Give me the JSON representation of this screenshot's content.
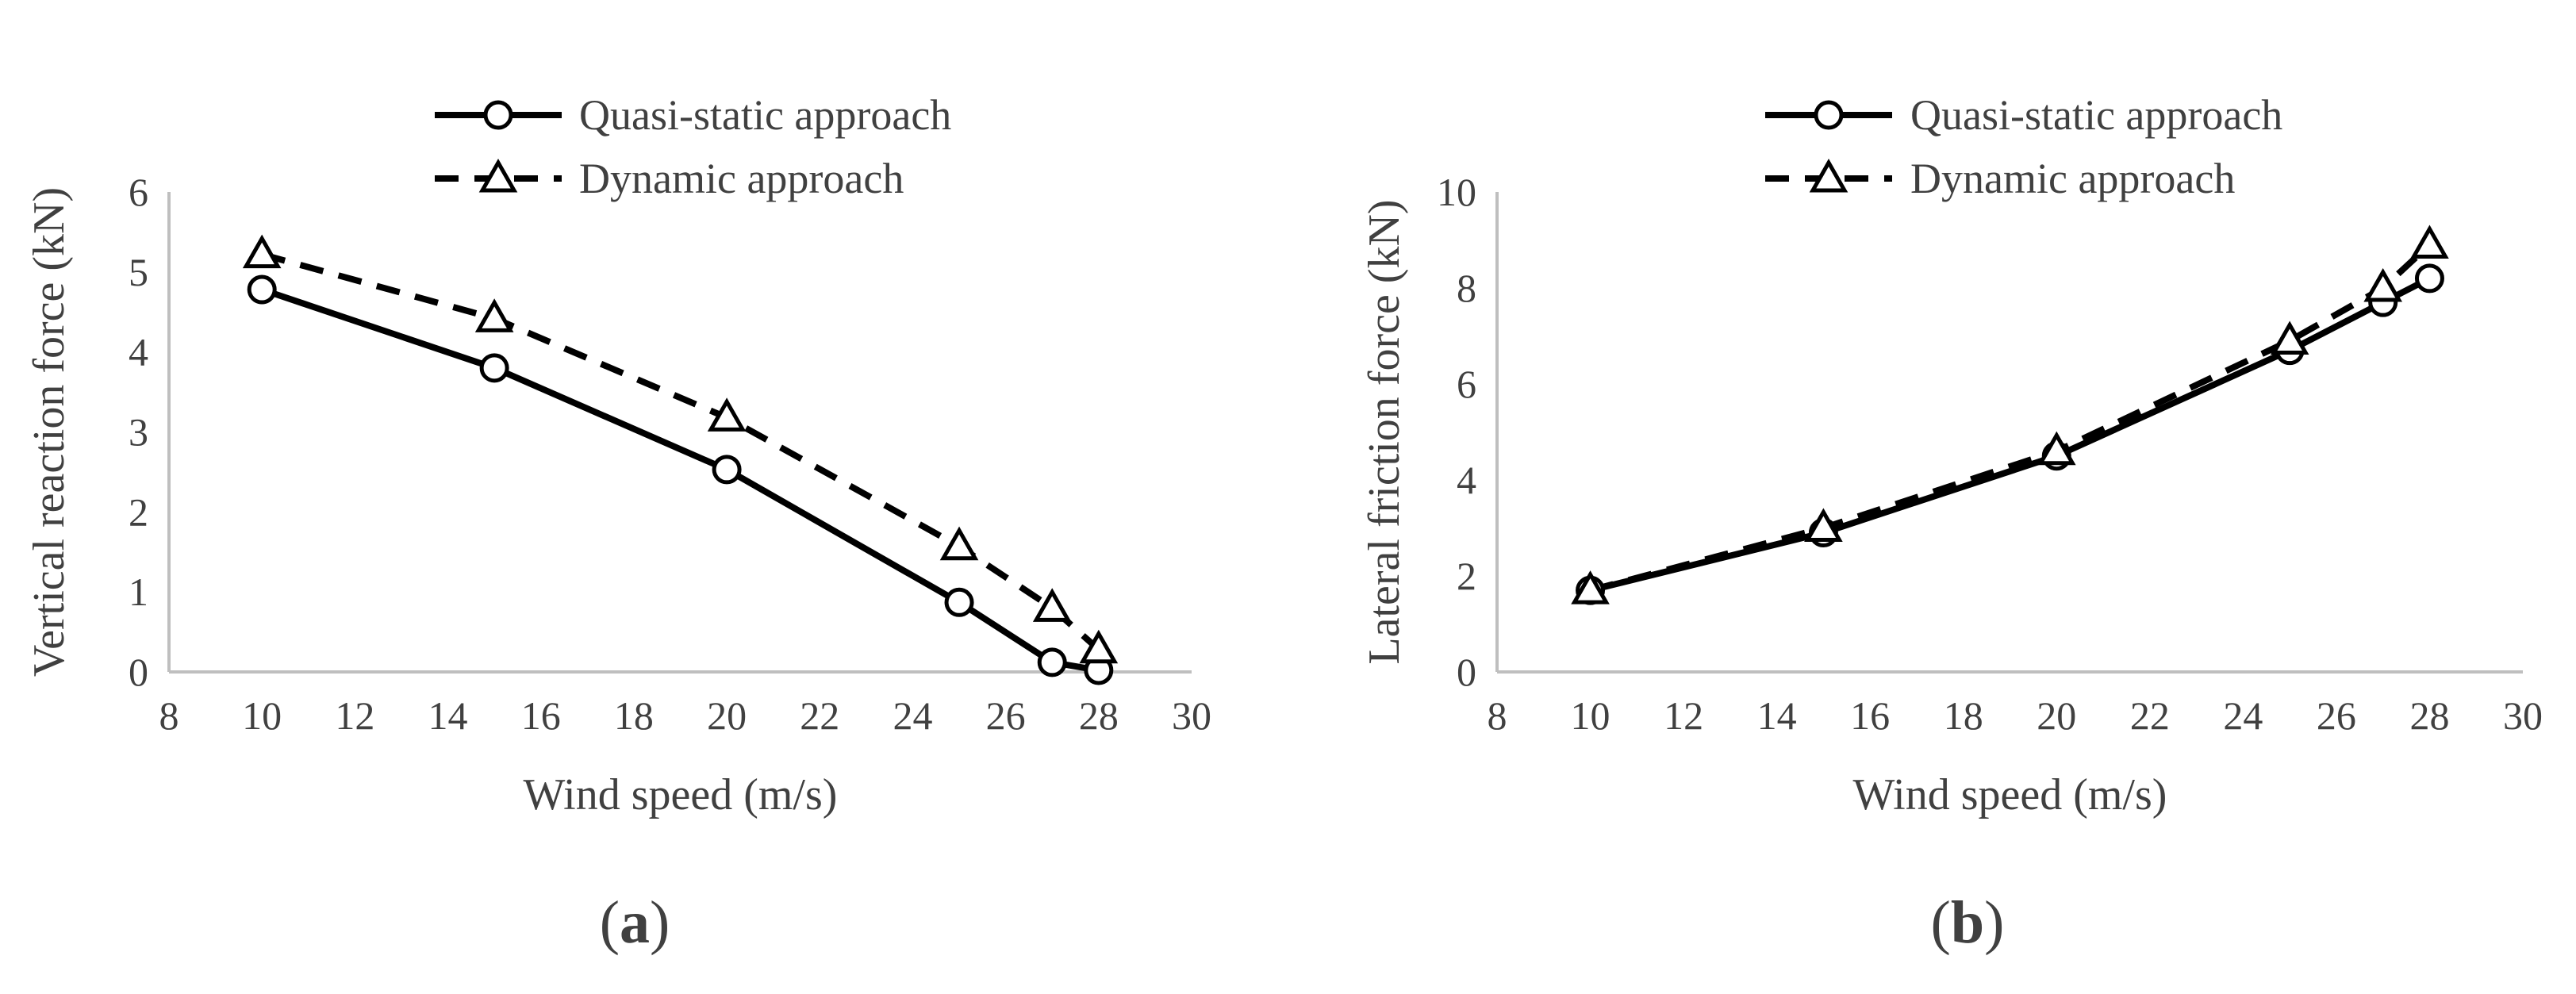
{
  "colors": {
    "axis": "#bfbfbf",
    "text": "#404040",
    "series": "#000000",
    "marker_fill": "#ffffff"
  },
  "chart_data": [
    {
      "type": "line",
      "panel": "a",
      "panel_label": {
        "open": "(",
        "letter": "a",
        "close": ")"
      },
      "title": "",
      "xlabel": "Wind speed (m/s)",
      "ylabel": "Vertical  reaction force (kN)",
      "xlim": [
        8,
        30
      ],
      "ylim": [
        0,
        6
      ],
      "xticks": [
        "8",
        "10",
        "12",
        "14",
        "16",
        "18",
        "20",
        "22",
        "24",
        "26",
        "28",
        "30"
      ],
      "yticks": [
        "0",
        "1",
        "2",
        "3",
        "4",
        "5",
        "6"
      ],
      "grid": false,
      "legend": "top-center",
      "series": [
        {
          "name": "Quasi-static approach",
          "line": "solid",
          "marker": "circle",
          "x": [
            10,
            15,
            20,
            25,
            27,
            28
          ],
          "y": [
            4.78,
            3.8,
            2.53,
            0.87,
            0.12,
            0.02
          ]
        },
        {
          "name": "Dynamic approach",
          "line": "dashed",
          "marker": "triangle",
          "x": [
            10,
            15,
            20,
            25,
            27,
            28
          ],
          "y": [
            5.22,
            4.42,
            3.18,
            1.57,
            0.8,
            0.28
          ]
        }
      ]
    },
    {
      "type": "line",
      "panel": "b",
      "panel_label": {
        "open": "(",
        "letter": "b",
        "close": ")"
      },
      "title": "",
      "xlabel": "Wind speed (m/s)",
      "ylabel": "Lateral friction  force (kN)",
      "xlim": [
        8,
        30
      ],
      "ylim": [
        0,
        10
      ],
      "xticks": [
        "8",
        "10",
        "12",
        "14",
        "16",
        "18",
        "20",
        "22",
        "24",
        "26",
        "28",
        "30"
      ],
      "yticks": [
        "0",
        "2",
        "4",
        "6",
        "8",
        "10"
      ],
      "grid": false,
      "legend": "top-center",
      "series": [
        {
          "name": "Quasi-static approach",
          "line": "solid",
          "marker": "circle",
          "x": [
            10,
            15,
            20,
            25,
            27,
            28
          ],
          "y": [
            1.7,
            2.9,
            4.5,
            6.7,
            7.7,
            8.2
          ]
        },
        {
          "name": "Dynamic approach",
          "line": "dashed",
          "marker": "triangle",
          "x": [
            10,
            15,
            20,
            25,
            27,
            28
          ],
          "y": [
            1.7,
            3.0,
            4.6,
            6.9,
            8.0,
            8.9
          ]
        }
      ]
    }
  ]
}
